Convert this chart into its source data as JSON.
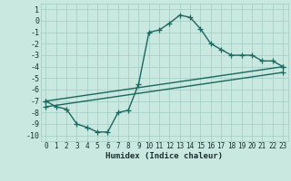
{
  "title": "",
  "xlabel": "Humidex (Indice chaleur)",
  "background_color": "#c9e8e0",
  "grid_color": "#a8d0c8",
  "line_color": "#1a6860",
  "xlim": [
    -0.5,
    23.5
  ],
  "ylim": [
    -10.5,
    1.5
  ],
  "xticks": [
    0,
    1,
    2,
    3,
    4,
    5,
    6,
    7,
    8,
    9,
    10,
    11,
    12,
    13,
    14,
    15,
    16,
    17,
    18,
    19,
    20,
    21,
    22,
    23
  ],
  "yticks": [
    1,
    0,
    -1,
    -2,
    -3,
    -4,
    -5,
    -6,
    -7,
    -8,
    -9,
    -10
  ],
  "curve1_x": [
    0,
    1,
    2,
    3,
    4,
    5,
    6,
    7,
    8,
    9,
    10,
    11,
    12,
    13,
    14,
    15,
    16,
    17,
    18,
    19,
    20,
    21,
    22,
    23
  ],
  "curve1_y": [
    -7,
    -7.5,
    -7.7,
    -9,
    -9.3,
    -9.7,
    -9.7,
    -8,
    -7.8,
    -5.5,
    -1,
    -0.8,
    -0.2,
    0.5,
    0.3,
    -0.7,
    -2,
    -2.5,
    -3,
    -3,
    -3,
    -3.5,
    -3.5,
    -4
  ],
  "line1_x": [
    0,
    23
  ],
  "line1_y": [
    -7.0,
    -4.0
  ],
  "line2_x": [
    0,
    23
  ],
  "line2_y": [
    -7.5,
    -4.5
  ],
  "marker": "+",
  "markersize": 4,
  "linewidth": 1.0
}
